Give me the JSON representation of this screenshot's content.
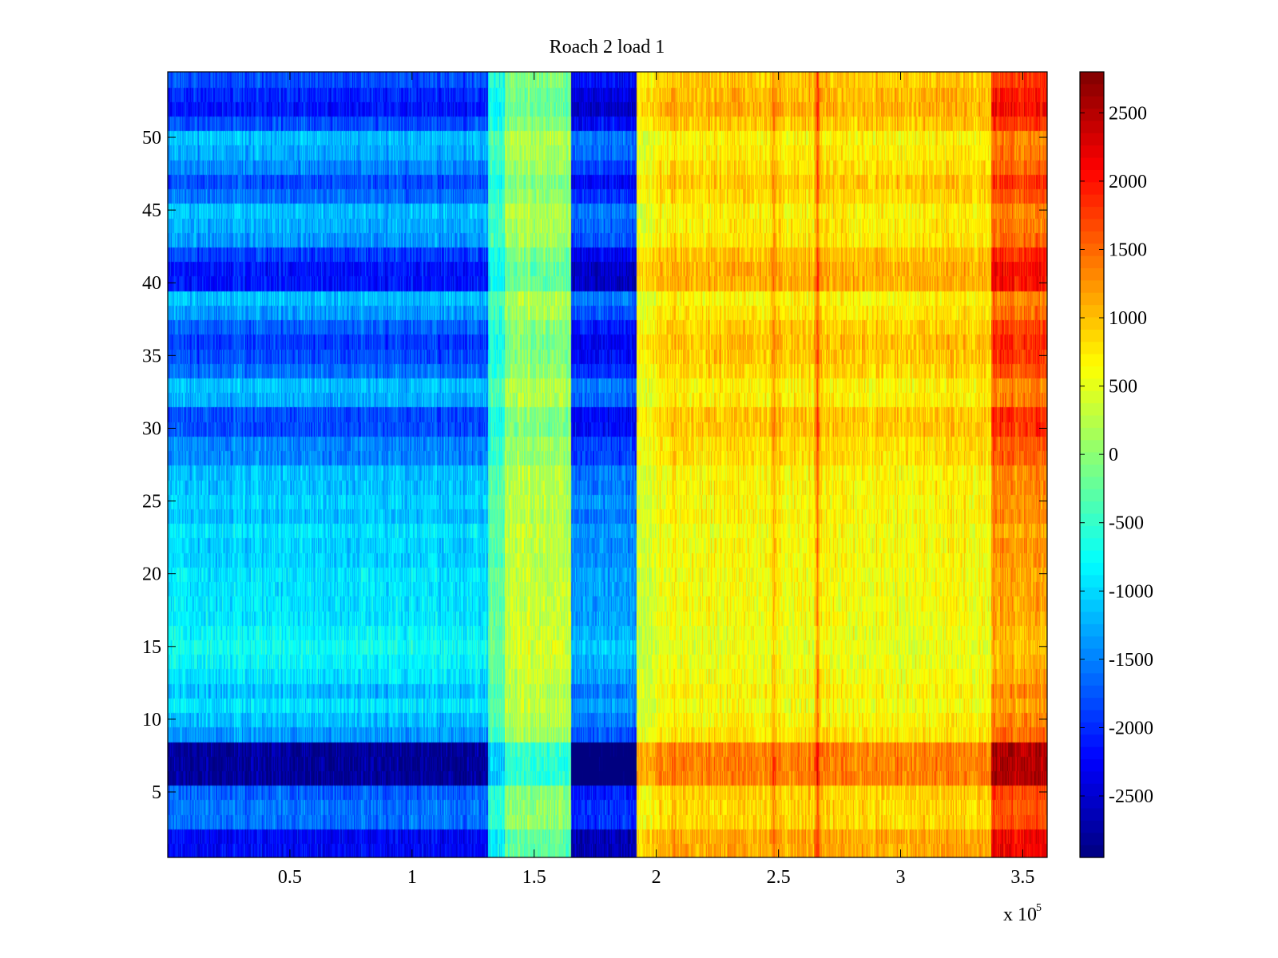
{
  "chart_data": {
    "type": "heatmap",
    "title": "Roach 2 load 1",
    "xlabel": "",
    "ylabel": "",
    "x_multiplier_label": {
      "base": "x 10",
      "exponent": "5"
    },
    "xlim": [
      0.0,
      3.6
    ],
    "ylim": [
      0.5,
      54.5
    ],
    "x_ticks": [
      0.5,
      1,
      1.5,
      2,
      2.5,
      3,
      3.5
    ],
    "x_tick_labels": [
      "0.5",
      "1",
      "1.5",
      "2",
      "2.5",
      "3",
      "3.5"
    ],
    "y_ticks": [
      5,
      10,
      15,
      20,
      25,
      30,
      35,
      40,
      45,
      50
    ],
    "y_tick_labels": [
      "5",
      "10",
      "15",
      "20",
      "25",
      "30",
      "35",
      "40",
      "45",
      "50"
    ],
    "colormap": "jet",
    "clim": [
      -2950,
      2800
    ],
    "colorbar_ticks": [
      2500,
      2000,
      1500,
      1000,
      500,
      0,
      -500,
      -1000,
      -1500,
      -2000,
      -2500
    ],
    "colorbar_tick_labels": [
      "2500",
      "2000",
      "1500",
      "1000",
      "500",
      "0",
      "-500",
      "-1000",
      "-1500",
      "-2000",
      "-2500"
    ],
    "rows": 54,
    "column_regions": [
      {
        "x_start": 0.0,
        "x_end": 1.31,
        "mean": -1150
      },
      {
        "x_start": 1.31,
        "x_end": 1.38,
        "mean": -350
      },
      {
        "x_start": 1.38,
        "x_end": 1.65,
        "mean": 250
      },
      {
        "x_start": 1.65,
        "x_end": 1.92,
        "mean": -1550
      },
      {
        "x_start": 1.92,
        "x_end": 2.0,
        "mean": 450
      },
      {
        "x_start": 2.0,
        "x_end": 3.37,
        "mean": 700
      },
      {
        "x_start": 3.37,
        "x_end": 3.6,
        "mean": 1350
      }
    ],
    "row_offsets": [
      -500,
      -500,
      -200,
      -200,
      -250,
      -750,
      -750,
      -750,
      -100,
      0,
      100,
      0,
      100,
      150,
      200,
      150,
      100,
      100,
      100,
      100,
      50,
      50,
      100,
      0,
      50,
      0,
      0,
      -150,
      -150,
      -300,
      -300,
      -50,
      0,
      -200,
      -300,
      -350,
      -250,
      -100,
      0,
      -450,
      -450,
      -350,
      -100,
      -50,
      0,
      -200,
      -300,
      -150,
      -50,
      0,
      -300,
      -450,
      -400,
      -300
    ],
    "highlight_columns": [
      {
        "x": 2.48,
        "strength": 450
      },
      {
        "x": 2.66,
        "strength": 850
      }
    ]
  }
}
